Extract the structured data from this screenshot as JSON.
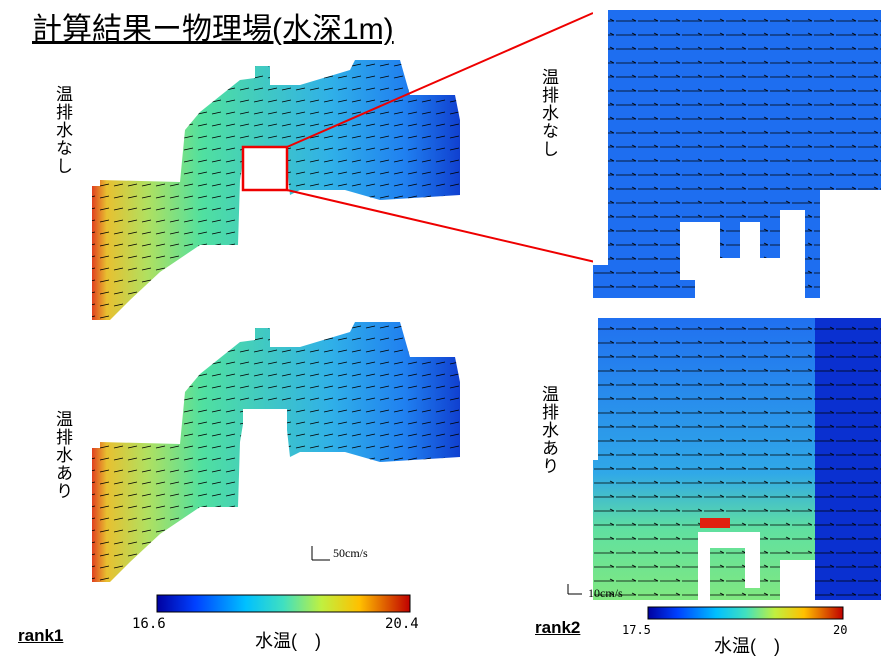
{
  "title": "計算結果ー物理場(水深1m)",
  "overview_labels": [
    "温排水なし",
    "温排水あり"
  ],
  "zoom_labels": [
    "温排水なし",
    "温排水あり"
  ],
  "scale_labels": [
    "50cm/s",
    "10cm/s"
  ],
  "colorbars": [
    {
      "min": 16.6,
      "max": 20.4,
      "label": "水温(　)"
    },
    {
      "min": 17.5,
      "max": 20,
      "label": "水温(　)"
    }
  ],
  "ranks": [
    "rank1",
    "rank2"
  ]
}
